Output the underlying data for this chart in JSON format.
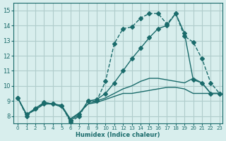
{
  "xlabel": "Humidex (Indice chaleur)",
  "ylabel": "",
  "xlim": [
    -0.5,
    23.3
  ],
  "ylim": [
    7.5,
    15.5
  ],
  "xticks": [
    0,
    1,
    2,
    3,
    4,
    5,
    6,
    7,
    8,
    9,
    10,
    11,
    12,
    13,
    14,
    15,
    16,
    17,
    18,
    19,
    20,
    21,
    22,
    23
  ],
  "yticks": [
    8,
    9,
    10,
    11,
    12,
    13,
    14,
    15
  ],
  "bg_color": "#d8eeed",
  "grid_color": "#b0cccb",
  "line_color": "#1a6b6b",
  "lines": [
    {
      "x": [
        0,
        1,
        2,
        3,
        4,
        5,
        6,
        7,
        8,
        9,
        10,
        11,
        12,
        13,
        14,
        15,
        16,
        17,
        18,
        19,
        20,
        21,
        22,
        23
      ],
      "y": [
        9.2,
        8.0,
        8.5,
        8.8,
        8.8,
        8.7,
        7.6,
        8.0,
        9.0,
        9.0,
        10.3,
        12.8,
        13.8,
        13.9,
        14.5,
        14.8,
        14.8,
        14.1,
        14.8,
        13.3,
        12.9,
        11.8,
        10.2,
        9.5
      ],
      "style": "--",
      "marker": "D",
      "markersize": 3
    },
    {
      "x": [
        0,
        1,
        2,
        3,
        4,
        5,
        6,
        7,
        8,
        9,
        10,
        11,
        12,
        13,
        14,
        15,
        16,
        17,
        18,
        19,
        20,
        21,
        22,
        23
      ],
      "y": [
        9.2,
        8.1,
        8.5,
        8.9,
        8.8,
        8.7,
        7.7,
        8.1,
        9.0,
        9.1,
        9.5,
        10.2,
        11.0,
        11.8,
        12.5,
        13.2,
        13.8,
        14.0,
        14.8,
        13.5,
        10.4,
        10.2,
        9.5,
        9.5
      ],
      "style": "-",
      "marker": "D",
      "markersize": 3
    },
    {
      "x": [
        0,
        1,
        2,
        3,
        4,
        5,
        6,
        7,
        8,
        9,
        10,
        11,
        12,
        13,
        14,
        15,
        16,
        17,
        18,
        19,
        20,
        21,
        22,
        23
      ],
      "y": [
        9.2,
        8.1,
        8.5,
        8.9,
        8.8,
        8.7,
        7.8,
        8.2,
        8.8,
        9.0,
        9.2,
        9.5,
        9.8,
        10.0,
        10.3,
        10.5,
        10.5,
        10.4,
        10.3,
        10.2,
        10.5,
        10.2,
        9.5,
        9.5
      ],
      "style": "-",
      "marker": null,
      "markersize": 0
    },
    {
      "x": [
        0,
        1,
        2,
        3,
        4,
        5,
        6,
        7,
        8,
        9,
        10,
        11,
        12,
        13,
        14,
        15,
        16,
        17,
        18,
        19,
        20,
        21,
        22,
        23
      ],
      "y": [
        9.2,
        8.1,
        8.4,
        8.8,
        8.8,
        8.6,
        7.8,
        8.2,
        8.8,
        8.9,
        9.1,
        9.3,
        9.5,
        9.5,
        9.6,
        9.7,
        9.8,
        9.9,
        9.9,
        9.8,
        9.5,
        9.5,
        9.5,
        9.5
      ],
      "style": "-",
      "marker": null,
      "markersize": 0
    }
  ]
}
